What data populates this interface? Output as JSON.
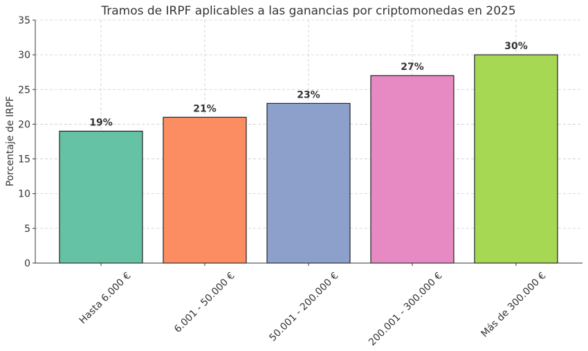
{
  "chart_data": {
    "type": "bar",
    "title": "Tramos de IRPF aplicables a las ganancias por criptomonedas en 2025",
    "xlabel": "",
    "ylabel": "Porcentaje de IRPF",
    "ylim": [
      0,
      35
    ],
    "yticks": [
      0,
      5,
      10,
      15,
      20,
      25,
      30,
      35
    ],
    "grid": true,
    "categories": [
      "Hasta 6.000 €",
      "6.001 - 50.000 €",
      "50.001 - 200.000 €",
      "200.001 - 300.000 €",
      "Más de 300.000 €"
    ],
    "values": [
      19,
      21,
      23,
      27,
      30
    ],
    "value_labels": [
      "19%",
      "21%",
      "23%",
      "27%",
      "30%"
    ],
    "colors": [
      "#66c2a5",
      "#fc8d62",
      "#8da0cb",
      "#e78ac3",
      "#a6d854"
    ]
  }
}
